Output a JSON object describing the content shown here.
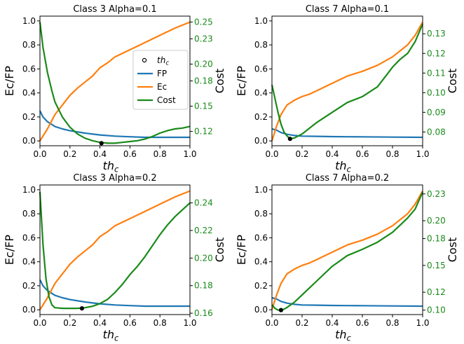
{
  "colors": {
    "fp": "#1f77b4",
    "ec": "#ff7f0e",
    "cost": "#1a8a1a",
    "cost_tick": "#1a8a1a",
    "marker": "#000000"
  },
  "legend": {
    "placement": "center-right",
    "panel": 0,
    "items": [
      "th_c",
      "FP",
      "Ec",
      "Cost"
    ]
  },
  "chart_data": [
    {
      "type": "line",
      "title": "Class 3 Alpha=0.1",
      "xlabel": "th_c",
      "ylabel": "Ec/FP",
      "ylabel_right": "Cost",
      "xlim": [
        0,
        1
      ],
      "ylim": [
        -0.04,
        1.04
      ],
      "y2lim": [
        0.103,
        0.257
      ],
      "xticks": [
        "0.0",
        "0.2",
        "0.4",
        "0.6",
        "0.8",
        "1.0"
      ],
      "yticks": [
        "0.0",
        "0.2",
        "0.4",
        "0.6",
        "0.8",
        "1.0"
      ],
      "y2ticks": [
        "0.12",
        "0.15",
        "0.18",
        "0.20",
        "0.23",
        "0.25"
      ],
      "y2tick_values": [
        0.12,
        0.15,
        0.18,
        0.2,
        0.23,
        0.25
      ],
      "marker": {
        "label": "th_c",
        "x": 0.41,
        "y2": 0.106
      },
      "series": [
        {
          "name": "FP",
          "axis": "left",
          "x": [
            0,
            0.02,
            0.05,
            0.1,
            0.15,
            0.2,
            0.3,
            0.4,
            0.5,
            0.6,
            0.7,
            0.8,
            0.9,
            1.0
          ],
          "y": [
            0.25,
            0.2,
            0.16,
            0.12,
            0.1,
            0.085,
            0.065,
            0.05,
            0.04,
            0.035,
            0.03,
            0.03,
            0.03,
            0.03
          ]
        },
        {
          "name": "Ec",
          "axis": "left",
          "x": [
            0,
            0.05,
            0.1,
            0.15,
            0.2,
            0.25,
            0.3,
            0.35,
            0.4,
            0.45,
            0.5,
            0.6,
            0.7,
            0.8,
            0.9,
            1.0
          ],
          "y": [
            0.0,
            0.1,
            0.22,
            0.3,
            0.38,
            0.44,
            0.49,
            0.54,
            0.61,
            0.65,
            0.7,
            0.76,
            0.82,
            0.88,
            0.94,
            0.99
          ]
        },
        {
          "name": "Cost",
          "axis": "right",
          "x": [
            0,
            0.02,
            0.05,
            0.08,
            0.1,
            0.15,
            0.2,
            0.25,
            0.3,
            0.35,
            0.4,
            0.45,
            0.5,
            0.55,
            0.6,
            0.65,
            0.7,
            0.75,
            0.8,
            0.85,
            0.9,
            0.95,
            1.0
          ],
          "y": [
            0.25,
            0.22,
            0.19,
            0.168,
            0.155,
            0.137,
            0.125,
            0.117,
            0.112,
            0.109,
            0.107,
            0.106,
            0.106,
            0.107,
            0.108,
            0.109,
            0.111,
            0.114,
            0.118,
            0.121,
            0.123,
            0.124,
            0.126
          ]
        }
      ]
    },
    {
      "type": "line",
      "title": "Class 7 Alpha=0.1",
      "xlabel": "th_c",
      "ylabel": "Ec/FP",
      "ylabel_right": "Cost",
      "xlim": [
        0,
        1
      ],
      "ylim": [
        -0.04,
        1.04
      ],
      "y2lim": [
        0.073,
        0.139
      ],
      "xticks": [
        "0.0",
        "0.2",
        "0.4",
        "0.6",
        "0.8",
        "1.0"
      ],
      "yticks": [
        "0.0",
        "0.2",
        "0.4",
        "0.6",
        "0.8",
        "1.0"
      ],
      "y2ticks": [
        "0.08",
        "0.09",
        "0.10",
        "0.11",
        "0.12",
        "0.13"
      ],
      "y2tick_values": [
        0.08,
        0.09,
        0.1,
        0.11,
        0.12,
        0.13
      ],
      "marker": {
        "label": "th_c",
        "x": 0.12,
        "y2": 0.0765
      },
      "series": [
        {
          "name": "FP",
          "axis": "left",
          "x": [
            0,
            0.03,
            0.06,
            0.1,
            0.15,
            0.2,
            0.3,
            0.4,
            0.5,
            0.6,
            0.8,
            1.0
          ],
          "y": [
            0.1,
            0.09,
            0.07,
            0.055,
            0.045,
            0.04,
            0.038,
            0.036,
            0.035,
            0.034,
            0.032,
            0.03
          ]
        },
        {
          "name": "Ec",
          "axis": "left",
          "x": [
            0,
            0.03,
            0.06,
            0.1,
            0.15,
            0.2,
            0.25,
            0.3,
            0.4,
            0.5,
            0.6,
            0.7,
            0.8,
            0.9,
            0.95,
            1.0
          ],
          "y": [
            0.0,
            0.12,
            0.22,
            0.3,
            0.34,
            0.37,
            0.39,
            0.42,
            0.48,
            0.54,
            0.58,
            0.63,
            0.7,
            0.8,
            0.88,
            0.99
          ]
        },
        {
          "name": "Cost",
          "axis": "right",
          "x": [
            0,
            0.02,
            0.04,
            0.06,
            0.08,
            0.1,
            0.12,
            0.15,
            0.2,
            0.25,
            0.3,
            0.4,
            0.5,
            0.6,
            0.7,
            0.75,
            0.8,
            0.85,
            0.9,
            0.95,
            1.0
          ],
          "y": [
            0.104,
            0.097,
            0.09,
            0.084,
            0.08,
            0.078,
            0.0765,
            0.077,
            0.079,
            0.082,
            0.085,
            0.09,
            0.095,
            0.098,
            0.103,
            0.108,
            0.113,
            0.117,
            0.12,
            0.126,
            0.135
          ]
        }
      ]
    },
    {
      "type": "line",
      "title": "Class 3 Alpha=0.2",
      "xlabel": "th_c",
      "ylabel": "Ec/FP",
      "ylabel_right": "Cost",
      "xlim": [
        0,
        1
      ],
      "ylim": [
        -0.04,
        1.04
      ],
      "y2lim": [
        0.159,
        0.253
      ],
      "xticks": [
        "0.0",
        "0.2",
        "0.4",
        "0.6",
        "0.8",
        "1.0"
      ],
      "yticks": [
        "0.0",
        "0.2",
        "0.4",
        "0.6",
        "0.8",
        "1.0"
      ],
      "y2ticks": [
        "0.16",
        "0.18",
        "0.20",
        "0.22",
        "0.24"
      ],
      "y2tick_values": [
        0.16,
        0.18,
        0.2,
        0.22,
        0.24
      ],
      "marker": {
        "label": "th_c",
        "x": 0.28,
        "y2": 0.1635
      },
      "series": [
        {
          "name": "FP",
          "axis": "left",
          "x": [
            0,
            0.02,
            0.05,
            0.1,
            0.15,
            0.2,
            0.3,
            0.4,
            0.5,
            0.6,
            0.7,
            0.8,
            0.9,
            1.0
          ],
          "y": [
            0.25,
            0.2,
            0.16,
            0.12,
            0.1,
            0.085,
            0.065,
            0.05,
            0.04,
            0.035,
            0.03,
            0.03,
            0.03,
            0.03
          ]
        },
        {
          "name": "Ec",
          "axis": "left",
          "x": [
            0,
            0.05,
            0.1,
            0.15,
            0.2,
            0.25,
            0.3,
            0.35,
            0.4,
            0.45,
            0.5,
            0.6,
            0.7,
            0.8,
            0.9,
            1.0
          ],
          "y": [
            0.0,
            0.1,
            0.22,
            0.3,
            0.38,
            0.44,
            0.49,
            0.54,
            0.61,
            0.65,
            0.7,
            0.76,
            0.82,
            0.88,
            0.94,
            0.99
          ]
        },
        {
          "name": "Cost",
          "axis": "right",
          "x": [
            0,
            0.02,
            0.04,
            0.06,
            0.08,
            0.1,
            0.15,
            0.2,
            0.25,
            0.3,
            0.35,
            0.4,
            0.45,
            0.5,
            0.55,
            0.6,
            0.65,
            0.7,
            0.75,
            0.8,
            0.85,
            0.9,
            0.95,
            1.0
          ],
          "y": [
            0.248,
            0.21,
            0.185,
            0.172,
            0.166,
            0.164,
            0.1635,
            0.1635,
            0.1635,
            0.164,
            0.165,
            0.167,
            0.17,
            0.175,
            0.181,
            0.188,
            0.194,
            0.201,
            0.209,
            0.217,
            0.224,
            0.23,
            0.235,
            0.24
          ]
        }
      ]
    },
    {
      "type": "line",
      "title": "Class 7 Alpha=0.2",
      "xlabel": "th_c",
      "ylabel": "Ec/FP",
      "ylabel_right": "Cost",
      "xlim": [
        0,
        1
      ],
      "ylim": [
        -0.04,
        1.04
      ],
      "y2lim": [
        0.095,
        0.24
      ],
      "xticks": [
        "0.0",
        "0.2",
        "0.4",
        "0.6",
        "0.8",
        "1.0"
      ],
      "yticks": [
        "0.0",
        "0.2",
        "0.4",
        "0.6",
        "0.8",
        "1.0"
      ],
      "y2ticks": [
        "0.10",
        "0.12",
        "0.15",
        "0.18",
        "0.20",
        "0.23"
      ],
      "y2tick_values": [
        0.1,
        0.12,
        0.15,
        0.18,
        0.2,
        0.23
      ],
      "marker": {
        "label": "th_c",
        "x": 0.06,
        "y2": 0.1
      },
      "series": [
        {
          "name": "FP",
          "axis": "left",
          "x": [
            0,
            0.03,
            0.06,
            0.1,
            0.15,
            0.2,
            0.3,
            0.4,
            0.5,
            0.6,
            0.8,
            1.0
          ],
          "y": [
            0.1,
            0.09,
            0.07,
            0.055,
            0.045,
            0.04,
            0.038,
            0.036,
            0.035,
            0.034,
            0.032,
            0.03
          ]
        },
        {
          "name": "Ec",
          "axis": "left",
          "x": [
            0,
            0.03,
            0.06,
            0.1,
            0.15,
            0.2,
            0.25,
            0.3,
            0.4,
            0.5,
            0.6,
            0.7,
            0.8,
            0.9,
            0.95,
            1.0
          ],
          "y": [
            0.0,
            0.12,
            0.22,
            0.3,
            0.34,
            0.37,
            0.39,
            0.42,
            0.48,
            0.54,
            0.58,
            0.63,
            0.7,
            0.8,
            0.88,
            0.99
          ]
        },
        {
          "name": "Cost",
          "axis": "right",
          "x": [
            0,
            0.02,
            0.04,
            0.06,
            0.08,
            0.1,
            0.15,
            0.2,
            0.25,
            0.3,
            0.4,
            0.5,
            0.6,
            0.7,
            0.8,
            0.85,
            0.9,
            0.95,
            1.0
          ],
          "y": [
            0.106,
            0.102,
            0.1,
            0.1,
            0.101,
            0.103,
            0.109,
            0.117,
            0.125,
            0.133,
            0.149,
            0.161,
            0.168,
            0.176,
            0.187,
            0.195,
            0.203,
            0.213,
            0.232
          ]
        }
      ]
    }
  ]
}
